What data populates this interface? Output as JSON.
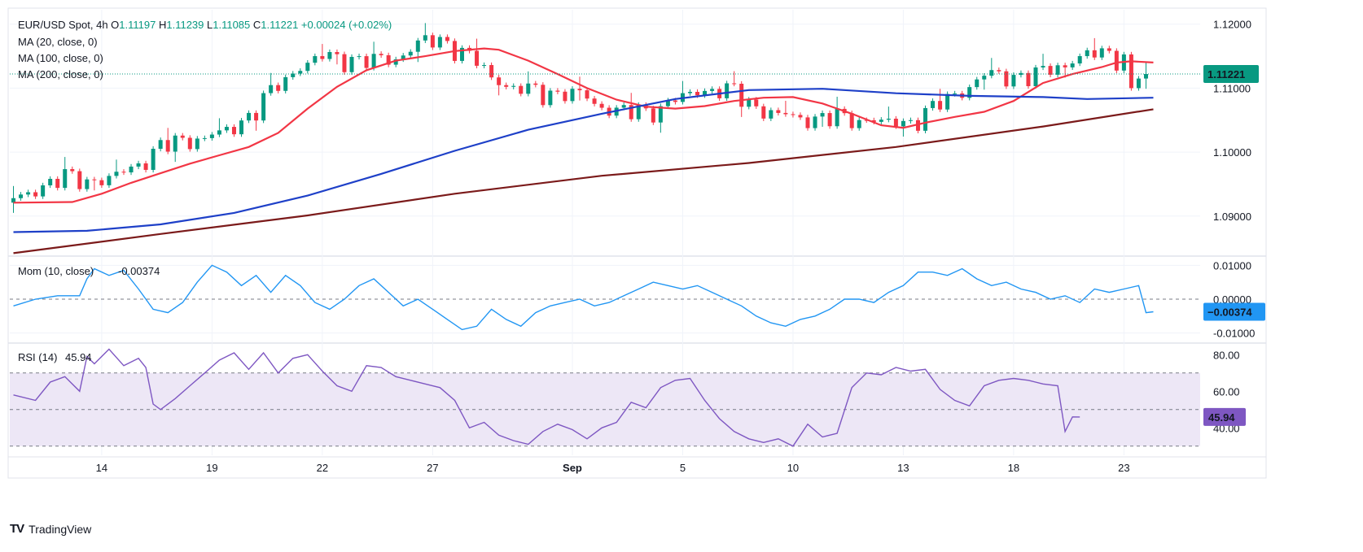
{
  "header": {
    "symbol": "EUR/USD Spot, 4h",
    "o_label": "O",
    "o_value": "1.11197",
    "h_label": "H",
    "h_value": "1.11239",
    "l_label": "L",
    "l_value": "1.11085",
    "c_label": "C",
    "c_value": "1.11221",
    "change": "+0.00024 (+0.02%)"
  },
  "footer": {
    "brand": "TradingView",
    "logo": "TV"
  },
  "colors": {
    "up": "#089981",
    "down": "#f23645",
    "ma20": "#f23645",
    "ma100": "#1e40c8",
    "ma200": "#7b1a1a",
    "mom": "#2196f3",
    "rsi": "#7e57c2",
    "rsi_band": "#ede7f6",
    "grid": "#f0f3fa",
    "last_price_bg": "#089981",
    "mom_badge_bg": "#2196f3",
    "rsi_badge_bg": "#7e57c2"
  },
  "chart_data": [
    {
      "type": "candlestick",
      "title": "EUR/USD Spot, 4h",
      "last_price": 1.11221,
      "last_price_label": "1.11221",
      "ylim": [
        1.084,
        1.122
      ],
      "yticks": [
        1.09,
        1.1,
        1.11,
        1.12
      ],
      "ytick_labels": [
        "1.09000",
        "1.10000",
        "1.11000",
        "1.12000"
      ],
      "xtick_labels": [
        "14",
        "19",
        "22",
        "27",
        "Sep",
        "5",
        "10",
        "13",
        "18",
        "23"
      ],
      "xtick_positions": [
        12,
        27,
        42,
        57,
        76,
        91,
        106,
        121,
        136,
        151
      ],
      "bar_count": 155,
      "series": [
        {
          "name": "MA (20, close, 0)",
          "values": [
            [
              0,
              1.0921
            ],
            [
              8,
              1.0922
            ],
            [
              12,
              1.0935
            ],
            [
              16,
              1.0952
            ],
            [
              20,
              1.0967
            ],
            [
              24,
              1.0982
            ],
            [
              28,
              1.0995
            ],
            [
              32,
              1.1008
            ],
            [
              36,
              1.103
            ],
            [
              40,
              1.1068
            ],
            [
              44,
              1.1102
            ],
            [
              48,
              1.1128
            ],
            [
              52,
              1.1143
            ],
            [
              56,
              1.115
            ],
            [
              60,
              1.1158
            ],
            [
              64,
              1.1162
            ],
            [
              66,
              1.116
            ],
            [
              70,
              1.1143
            ],
            [
              74,
              1.1122
            ],
            [
              78,
              1.11
            ],
            [
              82,
              1.1082
            ],
            [
              86,
              1.1071
            ],
            [
              90,
              1.1068
            ],
            [
              94,
              1.1072
            ],
            [
              98,
              1.108
            ],
            [
              102,
              1.1085
            ],
            [
              106,
              1.1086
            ],
            [
              110,
              1.1076
            ],
            [
              114,
              1.106
            ],
            [
              118,
              1.1042
            ],
            [
              121,
              1.1038
            ],
            [
              124,
              1.1046
            ],
            [
              128,
              1.1055
            ],
            [
              132,
              1.1063
            ],
            [
              136,
              1.108
            ],
            [
              140,
              1.1108
            ],
            [
              144,
              1.1122
            ],
            [
              148,
              1.1133
            ],
            [
              150,
              1.114
            ],
            [
              152,
              1.1142
            ],
            [
              155,
              1.114
            ]
          ]
        },
        {
          "name": "MA (100, close, 0)",
          "values": [
            [
              0,
              1.0875
            ],
            [
              10,
              1.0877
            ],
            [
              20,
              1.0887
            ],
            [
              30,
              1.0905
            ],
            [
              40,
              1.0932
            ],
            [
              50,
              1.0966
            ],
            [
              60,
              1.1002
            ],
            [
              70,
              1.1035
            ],
            [
              80,
              1.106
            ],
            [
              90,
              1.1083
            ],
            [
              100,
              1.1097
            ],
            [
              110,
              1.1099
            ],
            [
              120,
              1.1092
            ],
            [
              130,
              1.1088
            ],
            [
              140,
              1.1086
            ],
            [
              146,
              1.1083
            ],
            [
              155,
              1.1085
            ]
          ]
        },
        {
          "name": "MA (200, close, 0)",
          "values": [
            [
              0,
              1.0842
            ],
            [
              20,
              1.0872
            ],
            [
              40,
              1.0901
            ],
            [
              60,
              1.0935
            ],
            [
              80,
              1.0963
            ],
            [
              100,
              1.0983
            ],
            [
              120,
              1.1008
            ],
            [
              140,
              1.104
            ],
            [
              155,
              1.1067
            ]
          ]
        }
      ]
    },
    {
      "type": "line",
      "title": "Mom (10, close)",
      "last_value_label": "-0.00374",
      "badge_label": "−0.00374",
      "ylim": [
        -0.0125,
        0.012
      ],
      "yticks": [
        -0.01,
        0.0,
        0.01
      ],
      "ytick_labels": [
        "-0.01000",
        "0.00000",
        "0.01000"
      ],
      "series": [
        {
          "name": "Mom (10, close)",
          "values": [
            [
              0,
              -0.002
            ],
            [
              3,
              0.0
            ],
            [
              6,
              0.001
            ],
            [
              9,
              0.001
            ],
            [
              10,
              0.006
            ],
            [
              11,
              0.009
            ],
            [
              13,
              0.007
            ],
            [
              15,
              0.0085
            ],
            [
              17,
              0.003
            ],
            [
              19,
              -0.003
            ],
            [
              21,
              -0.004
            ],
            [
              23,
              -0.001
            ],
            [
              25,
              0.005
            ],
            [
              27,
              0.01
            ],
            [
              29,
              0.008
            ],
            [
              31,
              0.004
            ],
            [
              33,
              0.007
            ],
            [
              35,
              0.002
            ],
            [
              37,
              0.007
            ],
            [
              39,
              0.004
            ],
            [
              41,
              -0.001
            ],
            [
              43,
              -0.003
            ],
            [
              45,
              0.0
            ],
            [
              47,
              0.004
            ],
            [
              49,
              0.006
            ],
            [
              51,
              0.002
            ],
            [
              53,
              -0.002
            ],
            [
              55,
              0.0
            ],
            [
              57,
              -0.003
            ],
            [
              59,
              -0.006
            ],
            [
              61,
              -0.009
            ],
            [
              63,
              -0.008
            ],
            [
              65,
              -0.003
            ],
            [
              67,
              -0.006
            ],
            [
              69,
              -0.008
            ],
            [
              71,
              -0.004
            ],
            [
              73,
              -0.002
            ],
            [
              75,
              -0.001
            ],
            [
              77,
              0.0
            ],
            [
              79,
              -0.002
            ],
            [
              81,
              -0.001
            ],
            [
              83,
              0.001
            ],
            [
              85,
              0.003
            ],
            [
              87,
              0.005
            ],
            [
              89,
              0.004
            ],
            [
              91,
              0.003
            ],
            [
              93,
              0.004
            ],
            [
              95,
              0.002
            ],
            [
              97,
              0.0
            ],
            [
              99,
              -0.002
            ],
            [
              101,
              -0.005
            ],
            [
              103,
              -0.007
            ],
            [
              105,
              -0.008
            ],
            [
              107,
              -0.006
            ],
            [
              109,
              -0.005
            ],
            [
              111,
              -0.003
            ],
            [
              113,
              0.0
            ],
            [
              115,
              0.0
            ],
            [
              117,
              -0.001
            ],
            [
              119,
              0.002
            ],
            [
              121,
              0.004
            ],
            [
              123,
              0.008
            ],
            [
              125,
              0.008
            ],
            [
              127,
              0.007
            ],
            [
              129,
              0.009
            ],
            [
              131,
              0.006
            ],
            [
              133,
              0.004
            ],
            [
              135,
              0.005
            ],
            [
              137,
              0.003
            ],
            [
              139,
              0.002
            ],
            [
              141,
              0.0
            ],
            [
              143,
              0.001
            ],
            [
              145,
              -0.001
            ],
            [
              147,
              0.003
            ],
            [
              149,
              0.002
            ],
            [
              151,
              0.003
            ],
            [
              153,
              0.004
            ],
            [
              154,
              -0.004
            ],
            [
              155,
              -0.00374
            ]
          ]
        }
      ]
    },
    {
      "type": "line",
      "title": "RSI (14)",
      "last_value_label": "45.94",
      "ylim": [
        25,
        85
      ],
      "yticks": [
        40,
        60,
        80
      ],
      "ytick_labels": [
        "40.00",
        "60.00",
        "80.00"
      ],
      "bands": {
        "upper": 70,
        "middle": 50,
        "lower": 30
      },
      "series": [
        {
          "name": "RSI (14)",
          "values": [
            [
              0,
              58
            ],
            [
              3,
              55
            ],
            [
              5,
              65
            ],
            [
              7,
              68
            ],
            [
              9,
              60
            ],
            [
              10,
              79
            ],
            [
              11,
              75
            ],
            [
              13,
              83
            ],
            [
              15,
              74
            ],
            [
              17,
              78
            ],
            [
              18,
              73
            ],
            [
              19,
              53
            ],
            [
              20,
              50
            ],
            [
              22,
              56
            ],
            [
              24,
              63
            ],
            [
              26,
              70
            ],
            [
              28,
              77
            ],
            [
              30,
              81
            ],
            [
              32,
              72
            ],
            [
              34,
              81
            ],
            [
              36,
              70
            ],
            [
              38,
              78
            ],
            [
              40,
              80
            ],
            [
              42,
              71
            ],
            [
              44,
              63
            ],
            [
              46,
              60
            ],
            [
              48,
              74
            ],
            [
              50,
              73
            ],
            [
              52,
              68
            ],
            [
              54,
              66
            ],
            [
              56,
              64
            ],
            [
              58,
              62
            ],
            [
              60,
              55
            ],
            [
              62,
              40
            ],
            [
              64,
              43
            ],
            [
              66,
              36
            ],
            [
              68,
              33
            ],
            [
              70,
              31
            ],
            [
              72,
              38
            ],
            [
              74,
              42
            ],
            [
              76,
              39
            ],
            [
              78,
              34
            ],
            [
              80,
              40
            ],
            [
              82,
              43
            ],
            [
              84,
              54
            ],
            [
              86,
              51
            ],
            [
              88,
              62
            ],
            [
              90,
              66
            ],
            [
              92,
              67
            ],
            [
              94,
              55
            ],
            [
              96,
              45
            ],
            [
              98,
              38
            ],
            [
              100,
              34
            ],
            [
              102,
              32
            ],
            [
              104,
              34
            ],
            [
              106,
              30
            ],
            [
              108,
              42
            ],
            [
              110,
              35
            ],
            [
              112,
              37
            ],
            [
              114,
              62
            ],
            [
              116,
              70
            ],
            [
              118,
              69
            ],
            [
              120,
              73
            ],
            [
              122,
              71
            ],
            [
              124,
              72
            ],
            [
              126,
              61
            ],
            [
              128,
              55
            ],
            [
              130,
              52
            ],
            [
              132,
              63
            ],
            [
              134,
              66
            ],
            [
              136,
              67
            ],
            [
              138,
              66
            ],
            [
              140,
              64
            ],
            [
              142,
              63
            ],
            [
              143,
              38
            ],
            [
              144,
              46
            ],
            [
              145,
              45.94
            ]
          ]
        }
      ]
    }
  ]
}
